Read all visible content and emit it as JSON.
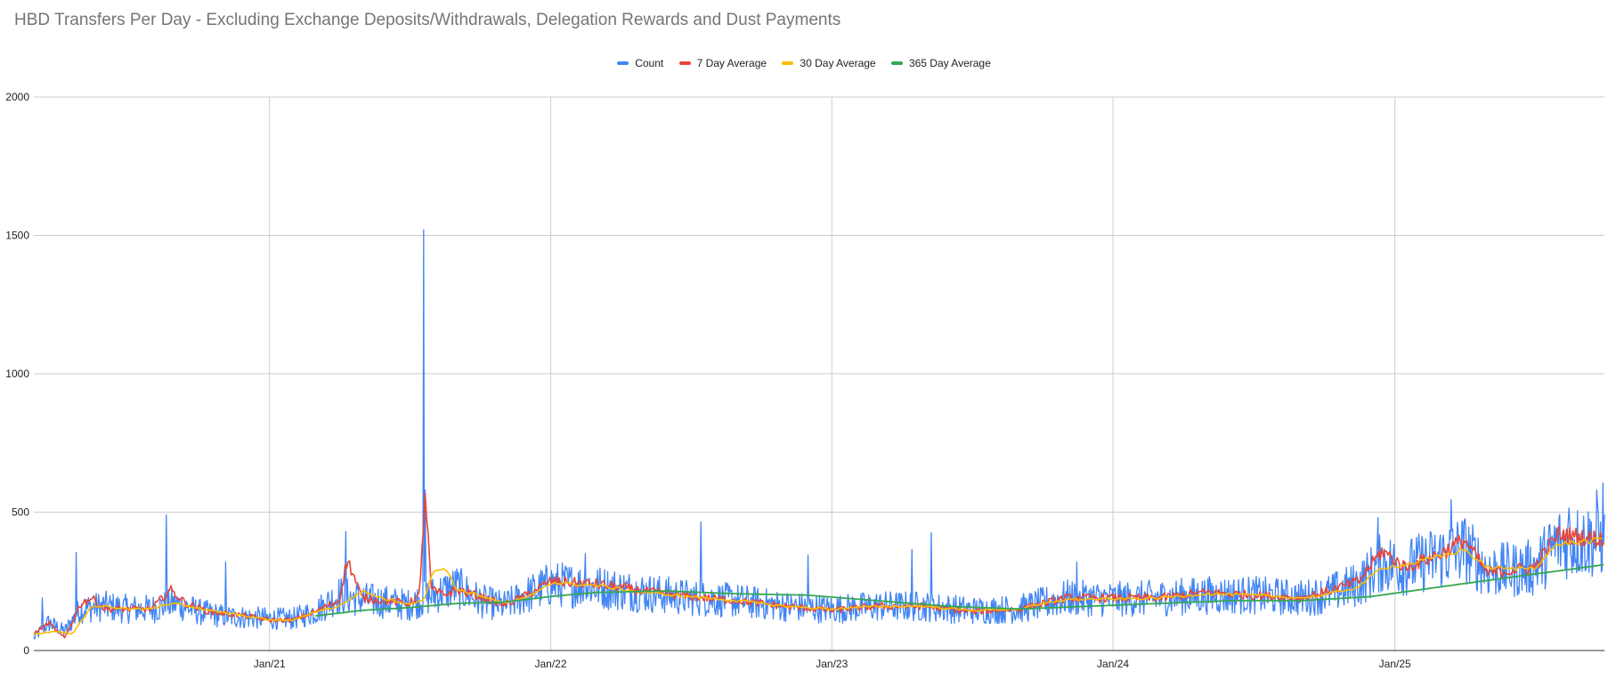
{
  "chart_data": {
    "type": "line",
    "title": "HBD Transfers Per Day - Excluding Exchange Deposits/Withdrawals, Delegation Rewards and Dust Payments",
    "xlabel": "",
    "ylabel": "",
    "x_range": [
      "2020-03-01",
      "2025-09-30"
    ],
    "ylim": [
      0,
      2000
    ],
    "y_ticks": [
      0,
      500,
      1000,
      1500,
      2000
    ],
    "x_ticks": [
      {
        "date": "2021-01-01",
        "label": "Jan/21"
      },
      {
        "date": "2022-01-01",
        "label": "Jan/22"
      },
      {
        "date": "2023-01-01",
        "label": "Jan/23"
      },
      {
        "date": "2024-01-01",
        "label": "Jan/24"
      },
      {
        "date": "2025-01-01",
        "label": "Jan/25"
      }
    ],
    "grid": true,
    "legend_position": "top",
    "series": [
      {
        "name": "Count",
        "color": "#4285f4",
        "anchors": [
          [
            "2020-03-01",
            45
          ],
          [
            "2020-03-20",
            100
          ],
          [
            "2020-04-10",
            70
          ],
          [
            "2020-05-01",
            150
          ],
          [
            "2020-06-01",
            160
          ],
          [
            "2020-07-01",
            150
          ],
          [
            "2020-08-01",
            150
          ],
          [
            "2020-09-01",
            170
          ],
          [
            "2020-10-01",
            140
          ],
          [
            "2020-11-01",
            125
          ],
          [
            "2020-12-01",
            120
          ],
          [
            "2021-01-01",
            115
          ],
          [
            "2021-02-01",
            115
          ],
          [
            "2021-03-01",
            140
          ],
          [
            "2021-04-01",
            200
          ],
          [
            "2021-05-01",
            185
          ],
          [
            "2021-06-01",
            175
          ],
          [
            "2021-07-01",
            165
          ],
          [
            "2021-08-01",
            200
          ],
          [
            "2021-09-01",
            230
          ],
          [
            "2021-10-01",
            180
          ],
          [
            "2021-11-01",
            160
          ],
          [
            "2021-12-01",
            200
          ],
          [
            "2022-01-01",
            240
          ],
          [
            "2022-03-01",
            230
          ],
          [
            "2022-05-01",
            210
          ],
          [
            "2022-07-01",
            190
          ],
          [
            "2022-09-01",
            180
          ],
          [
            "2022-11-01",
            160
          ],
          [
            "2023-01-01",
            150
          ],
          [
            "2023-03-01",
            160
          ],
          [
            "2023-05-01",
            160
          ],
          [
            "2023-07-01",
            145
          ],
          [
            "2023-09-01",
            150
          ],
          [
            "2023-11-01",
            190
          ],
          [
            "2024-01-01",
            185
          ],
          [
            "2024-03-01",
            190
          ],
          [
            "2024-05-01",
            200
          ],
          [
            "2024-07-01",
            200
          ],
          [
            "2024-09-01",
            190
          ],
          [
            "2024-10-01",
            200
          ],
          [
            "2024-11-15",
            240
          ],
          [
            "2024-12-15",
            320
          ],
          [
            "2025-01-15",
            300
          ],
          [
            "2025-03-01",
            340
          ],
          [
            "2025-04-01",
            370
          ],
          [
            "2025-05-01",
            290
          ],
          [
            "2025-06-01",
            290
          ],
          [
            "2025-07-01",
            300
          ],
          [
            "2025-08-01",
            390
          ],
          [
            "2025-09-30",
            400
          ]
        ],
        "spikes": [
          [
            "2020-03-12",
            190
          ],
          [
            "2020-04-25",
            355
          ],
          [
            "2020-08-20",
            490
          ],
          [
            "2020-11-05",
            320
          ],
          [
            "2021-04-10",
            430
          ],
          [
            "2021-07-20",
            1520
          ],
          [
            "2021-07-22",
            580
          ],
          [
            "2022-02-15",
            350
          ],
          [
            "2022-07-15",
            465
          ],
          [
            "2022-12-01",
            345
          ],
          [
            "2023-04-15",
            365
          ],
          [
            "2023-05-10",
            425
          ],
          [
            "2023-11-15",
            320
          ],
          [
            "2024-12-10",
            480
          ],
          [
            "2025-03-15",
            545
          ],
          [
            "2025-08-15",
            515
          ],
          [
            "2025-09-20",
            580
          ],
          [
            "2025-09-28",
            605
          ]
        ]
      },
      {
        "name": "7 Day Average",
        "color": "#ea4335",
        "anchors": [
          [
            "2020-03-01",
            60
          ],
          [
            "2020-03-20",
            100
          ],
          [
            "2020-04-10",
            45
          ],
          [
            "2020-05-01",
            170
          ],
          [
            "2020-05-15",
            190
          ],
          [
            "2020-06-01",
            150
          ],
          [
            "2020-07-01",
            150
          ],
          [
            "2020-08-01",
            150
          ],
          [
            "2020-08-25",
            220
          ],
          [
            "2020-09-15",
            170
          ],
          [
            "2020-10-15",
            140
          ],
          [
            "2020-12-01",
            125
          ],
          [
            "2021-01-01",
            110
          ],
          [
            "2021-02-01",
            110
          ],
          [
            "2021-03-01",
            140
          ],
          [
            "2021-04-01",
            180
          ],
          [
            "2021-04-12",
            330
          ],
          [
            "2021-05-01",
            190
          ],
          [
            "2021-06-01",
            180
          ],
          [
            "2021-07-01",
            170
          ],
          [
            "2021-07-15",
            200
          ],
          [
            "2021-07-22",
            575
          ],
          [
            "2021-07-30",
            220
          ],
          [
            "2021-08-15",
            200
          ],
          [
            "2021-09-01",
            220
          ],
          [
            "2021-10-01",
            195
          ],
          [
            "2021-11-01",
            165
          ],
          [
            "2021-12-01",
            200
          ],
          [
            "2022-01-01",
            250
          ],
          [
            "2022-03-01",
            240
          ],
          [
            "2022-05-01",
            215
          ],
          [
            "2022-07-01",
            195
          ],
          [
            "2022-09-01",
            180
          ],
          [
            "2022-11-01",
            160
          ],
          [
            "2023-01-01",
            145
          ],
          [
            "2023-03-01",
            160
          ],
          [
            "2023-05-01",
            160
          ],
          [
            "2023-07-01",
            140
          ],
          [
            "2023-09-01",
            150
          ],
          [
            "2023-11-01",
            190
          ],
          [
            "2024-01-01",
            190
          ],
          [
            "2024-03-01",
            190
          ],
          [
            "2024-05-01",
            210
          ],
          [
            "2024-07-01",
            200
          ],
          [
            "2024-09-01",
            190
          ],
          [
            "2024-10-01",
            210
          ],
          [
            "2024-11-15",
            250
          ],
          [
            "2024-12-15",
            360
          ],
          [
            "2025-01-15",
            300
          ],
          [
            "2025-03-01",
            350
          ],
          [
            "2025-04-01",
            400
          ],
          [
            "2025-05-01",
            280
          ],
          [
            "2025-06-01",
            290
          ],
          [
            "2025-07-01",
            300
          ],
          [
            "2025-08-01",
            420
          ],
          [
            "2025-09-30",
            400
          ]
        ]
      },
      {
        "name": "30 Day Average",
        "color": "#fbbc04",
        "anchors": [
          [
            "2020-03-01",
            60
          ],
          [
            "2020-04-01",
            70
          ],
          [
            "2020-04-20",
            60
          ],
          [
            "2020-05-15",
            160
          ],
          [
            "2020-06-01",
            160
          ],
          [
            "2020-07-01",
            150
          ],
          [
            "2020-08-01",
            150
          ],
          [
            "2020-09-01",
            175
          ],
          [
            "2020-10-01",
            150
          ],
          [
            "2020-12-01",
            125
          ],
          [
            "2021-01-01",
            110
          ],
          [
            "2021-02-01",
            110
          ],
          [
            "2021-03-01",
            140
          ],
          [
            "2021-04-01",
            160
          ],
          [
            "2021-05-01",
            215
          ],
          [
            "2021-06-01",
            185
          ],
          [
            "2021-07-01",
            170
          ],
          [
            "2021-07-20",
            180
          ],
          [
            "2021-08-01",
            290
          ],
          [
            "2021-08-20",
            290
          ],
          [
            "2021-09-01",
            220
          ],
          [
            "2021-10-01",
            200
          ],
          [
            "2021-11-01",
            170
          ],
          [
            "2021-12-01",
            190
          ],
          [
            "2022-01-01",
            245
          ],
          [
            "2022-03-01",
            235
          ],
          [
            "2022-05-01",
            210
          ],
          [
            "2022-07-01",
            195
          ],
          [
            "2022-09-01",
            180
          ],
          [
            "2022-11-01",
            160
          ],
          [
            "2023-01-01",
            150
          ],
          [
            "2023-03-01",
            160
          ],
          [
            "2023-05-01",
            160
          ],
          [
            "2023-07-01",
            145
          ],
          [
            "2023-09-01",
            150
          ],
          [
            "2023-11-01",
            185
          ],
          [
            "2024-01-01",
            185
          ],
          [
            "2024-03-01",
            190
          ],
          [
            "2024-05-01",
            205
          ],
          [
            "2024-07-01",
            200
          ],
          [
            "2024-09-01",
            190
          ],
          [
            "2024-10-01",
            200
          ],
          [
            "2024-11-15",
            230
          ],
          [
            "2024-12-15",
            300
          ],
          [
            "2025-01-15",
            310
          ],
          [
            "2025-03-01",
            340
          ],
          [
            "2025-04-01",
            365
          ],
          [
            "2025-05-01",
            300
          ],
          [
            "2025-06-01",
            295
          ],
          [
            "2025-07-01",
            300
          ],
          [
            "2025-08-01",
            385
          ],
          [
            "2025-09-30",
            400
          ]
        ]
      },
      {
        "name": "365 Day Average",
        "color": "#34a853",
        "anchors": [
          [
            "2021-03-01",
            125
          ],
          [
            "2021-05-01",
            145
          ],
          [
            "2021-07-01",
            155
          ],
          [
            "2021-09-01",
            170
          ],
          [
            "2021-11-01",
            175
          ],
          [
            "2022-01-01",
            195
          ],
          [
            "2022-03-01",
            210
          ],
          [
            "2022-06-01",
            215
          ],
          [
            "2022-09-01",
            205
          ],
          [
            "2022-12-01",
            200
          ],
          [
            "2023-03-01",
            180
          ],
          [
            "2023-06-01",
            160
          ],
          [
            "2023-09-01",
            150
          ],
          [
            "2023-12-01",
            160
          ],
          [
            "2024-03-01",
            170
          ],
          [
            "2024-06-01",
            180
          ],
          [
            "2024-09-01",
            180
          ],
          [
            "2024-12-01",
            195
          ],
          [
            "2025-03-01",
            230
          ],
          [
            "2025-06-01",
            265
          ],
          [
            "2025-09-30",
            310
          ]
        ]
      }
    ]
  }
}
